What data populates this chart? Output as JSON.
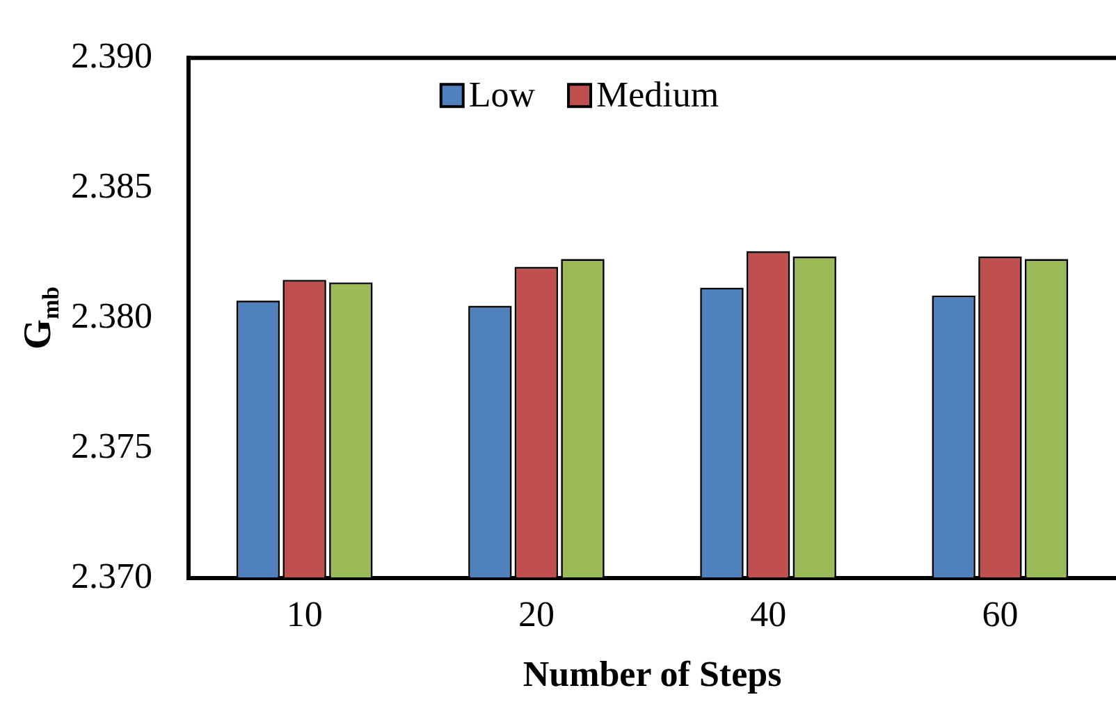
{
  "chart_data": {
    "type": "bar",
    "xlabel": "Number of Steps",
    "ylabel": "G$_{mb}$",
    "categories": [
      "10",
      "20",
      "40",
      "60"
    ],
    "series": [
      {
        "name": "Low",
        "color": "#4f81bd",
        "values": [
          2.3806,
          2.3804,
          2.3811,
          2.3808
        ]
      },
      {
        "name": "Medium",
        "color": "#c0504d",
        "values": [
          2.3814,
          2.3819,
          2.3825,
          2.3823
        ]
      },
      {
        "color": "#9bbb59",
        "values": [
          2.3813,
          2.3822,
          2.3823,
          2.3822
        ]
      }
    ],
    "ylim": [
      2.37,
      2.39
    ],
    "yticks": [
      {
        "value": 2.37,
        "label": "2.370"
      },
      {
        "value": 2.375,
        "label": "2.375"
      },
      {
        "value": 2.38,
        "label": "2.380"
      },
      {
        "value": 2.385,
        "label": "2.385"
      },
      {
        "value": 2.39,
        "label": "2.390"
      }
    ],
    "grid": false,
    "legend": "top"
  }
}
